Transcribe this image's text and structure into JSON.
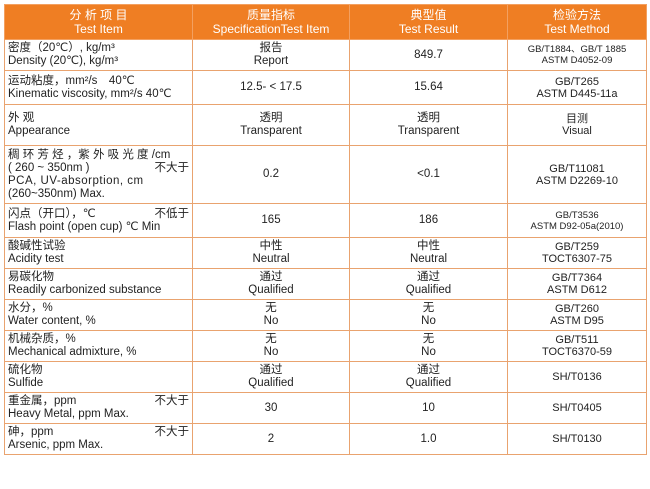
{
  "header": {
    "col1_zh": "分 析 项 目",
    "col1_en": "Test Item",
    "col2_zh": "质量指标",
    "col2_en": "SpecificationTest Item",
    "col3_zh": "典型值",
    "col3_en": "Test Result",
    "col4_zh": "检验方法",
    "col4_en": "Test Method"
  },
  "rows": [
    {
      "item_zh": "密度（20℃）, kg/m³",
      "item_en": "Density (20℃), kg/m³",
      "spec_zh": "报告",
      "spec_en": "Report",
      "result_zh": "",
      "result_en": "849.7",
      "method1": "GB/T1884、GB/T 1885",
      "method2": "ASTM D4052-09"
    },
    {
      "item_zh": "运动粘度，mm²/s　40℃",
      "item_en": "Kinematic viscosity, mm²/s 40℃",
      "spec_zh": "",
      "spec_en": "12.5- < 17.5",
      "result_zh": "",
      "result_en": "15.64",
      "method1": "GB/T265",
      "method2": "ASTM D445-11a"
    },
    {
      "item_zh": "外 观",
      "item_en": "Appearance",
      "spec_zh": "透明",
      "spec_en": "Transparent",
      "result_zh": "透明",
      "result_en": "Transparent",
      "method1": "目测",
      "method2": "Visual"
    },
    {
      "item_l1": "稠 环 芳 烃 ，紫 外 吸 光 度 /cm",
      "item_l2a": "( 260 ~ 350nm )",
      "item_l2b": "不大于",
      "item_l3": "PCA, UV-absorption, cm",
      "item_l4": "(260~350nm) Max.",
      "spec_en": "0.2",
      "result_en": "<0.1",
      "method1": "GB/T11081",
      "method2": "ASTM D2269-10"
    },
    {
      "item_zh": "闪点（开口），℃",
      "item_zh_r": "不低于",
      "item_en": "Flash point (open cup) ℃ Min",
      "spec_en": "165",
      "result_en": "186",
      "method1": "GB/T3536",
      "method2": "ASTM D92-05a(2010)"
    },
    {
      "item_zh": "酸碱性试验",
      "item_en": "Acidity test",
      "spec_zh": "中性",
      "spec_en": "Neutral",
      "result_zh": "中性",
      "result_en": "Neutral",
      "method1": "GB/T259",
      "method2": "TOCT6307-75"
    },
    {
      "item_zh": "易碳化物",
      "item_en": "Readily carbonized substance",
      "spec_zh": "通过",
      "spec_en": "Qualified",
      "result_zh": "通过",
      "result_en": "Qualified",
      "method1": "GB/T7364",
      "method2": "ASTM D612"
    },
    {
      "item_zh": "水分，%",
      "item_en": "Water content, %",
      "spec_zh": "无",
      "spec_en": "No",
      "result_zh": "无",
      "result_en": "No",
      "method1": "GB/T260",
      "method2": "ASTM D95"
    },
    {
      "item_zh": "机械杂质，%",
      "item_en": "Mechanical admixture, %",
      "spec_zh": "无",
      "spec_en": "No",
      "result_zh": "无",
      "result_en": "No",
      "method1": "GB/T511",
      "method2": "TOCT6370-59"
    },
    {
      "item_zh": "硫化物",
      "item_en": "Sulfide",
      "spec_zh": "通过",
      "spec_en": "Qualified",
      "result_zh": "通过",
      "result_en": "Qualified",
      "method1": "SH/T0136",
      "method2": ""
    },
    {
      "item_zh": "重金属，ppm",
      "item_zh_r": "不大于",
      "item_en": "Heavy Metal, ppm Max.",
      "spec_en": "30",
      "result_en": "10",
      "method1": "SH/T0405",
      "method2": ""
    },
    {
      "item_zh": "砷，ppm",
      "item_zh_r": "不大于",
      "item_en": "Arsenic, ppm Max.",
      "spec_en": "2",
      "result_en": "1.0",
      "method1": "SH/T0130",
      "method2": ""
    }
  ]
}
